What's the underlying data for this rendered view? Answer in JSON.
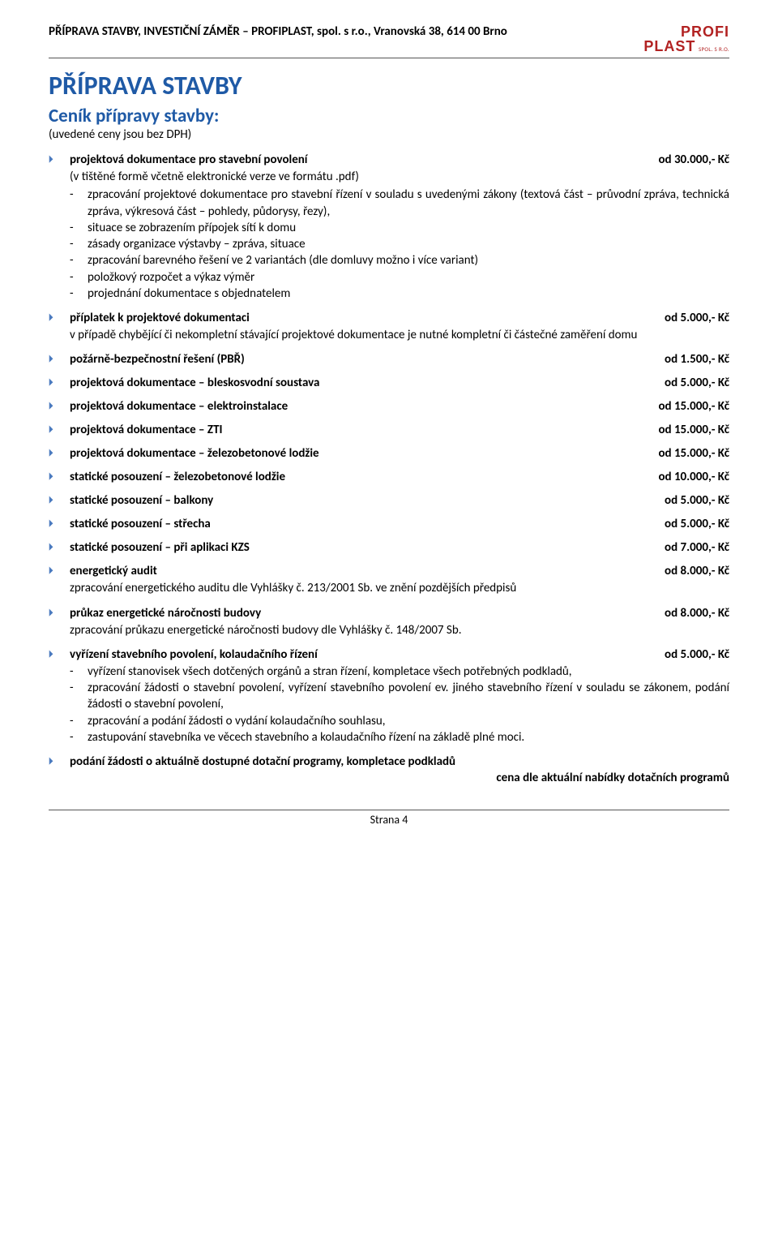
{
  "header": {
    "text": "PŘÍPRAVA STAVBY, INVESTIČNÍ ZÁMĚR – PROFIPLAST, spol. s r.o., Vranovská 38, 614 00 Brno",
    "logo_line1": "PROFI",
    "logo_line2": "PLAST",
    "logo_small": "SPOL. S R.O."
  },
  "titles": {
    "main": "PŘÍPRAVA STAVBY",
    "sub": "Ceník přípravy stavby:",
    "note": "(uvedené ceny jsou bez DPH)"
  },
  "item1": {
    "label": "projektová dokumentace pro stavební povolení",
    "price": "od 30.000,- Kč",
    "sub": "(v tištěné formě včetně elektronické verze ve formátu .pdf)",
    "d1": "zpracování projektové dokumentace pro stavební řízení v souladu s uvedenými zákony (textová část – průvodní zpráva, technická zpráva, výkresová část – pohledy, půdorysy, řezy),",
    "d2": "situace se zobrazením přípojek sítí k domu",
    "d3": "zásady organizace výstavby – zpráva, situace",
    "d4": "zpracování barevného řešení ve 2 variantách (dle domluvy možno i více variant)",
    "d5": "položkový rozpočet a výkaz výměr",
    "d6": "projednání dokumentace s objednatelem"
  },
  "item2": {
    "label": "příplatek k projektové dokumentaci",
    "price": "od 5.000,- Kč",
    "sub": "v případě chybějící či nekompletní stávající projektové dokumentace je nutné kompletní či částečné zaměření domu"
  },
  "item3": {
    "label": "požárně-bezpečnostní řešení (PBŘ)",
    "price": "od 1.500,- Kč"
  },
  "item4": {
    "label": "projektová dokumentace – bleskosvodní soustava",
    "price": "od 5.000,- Kč"
  },
  "item5": {
    "label": "projektová dokumentace – elektroinstalace",
    "price": "od 15.000,- Kč"
  },
  "item6": {
    "label": "projektová dokumentace – ZTI",
    "price": "od 15.000,- Kč"
  },
  "item7": {
    "label": "projektová dokumentace – železobetonové lodžie",
    "price": "od 15.000,- Kč"
  },
  "item8": {
    "label": "statické posouzení – železobetonové lodžie",
    "price": "od 10.000,- Kč"
  },
  "item9": {
    "label": "statické posouzení – balkony",
    "price": "od 5.000,- Kč"
  },
  "item10": {
    "label": "statické posouzení – střecha",
    "price": "od 5.000,- Kč"
  },
  "item11": {
    "label": "statické posouzení – při aplikaci KZS",
    "price": "od 7.000,- Kč"
  },
  "item12": {
    "label": "energetický audit",
    "price": "od 8.000,- Kč",
    "sub": "zpracování energetického auditu dle Vyhlášky č. 213/2001 Sb. ve znění pozdějších předpisů"
  },
  "item13": {
    "label": "průkaz energetické náročnosti budovy",
    "price": "od 8.000,- Kč",
    "sub": "zpracování průkazu energetické náročnosti budovy dle Vyhlášky č. 148/2007 Sb."
  },
  "item14": {
    "label": "vyřízení stavebního povolení, kolaudačního řízení",
    "price": "od 5.000,- Kč",
    "d1": "vyřízení stanovisek všech dotčených orgánů a stran řízení, kompletace všech potřebných podkladů,",
    "d2": "zpracování žádosti o stavební povolení, vyřízení stavebního povolení ev. jiného stavebního řízení v souladu se zákonem, podání žádosti o stavební povolení,",
    "d3": "zpracování a podání žádosti o vydání kolaudačního souhlasu,",
    "d4": "zastupování stavebníka ve věcech stavebního a kolaudačního řízení na základě plné moci."
  },
  "item15": {
    "label": "podání žádosti o aktuálně dostupné dotační programy, kompletace podkladů",
    "price": "cena dle aktuální nabídky dotačních programů"
  },
  "footer": {
    "page": "Strana 4"
  }
}
